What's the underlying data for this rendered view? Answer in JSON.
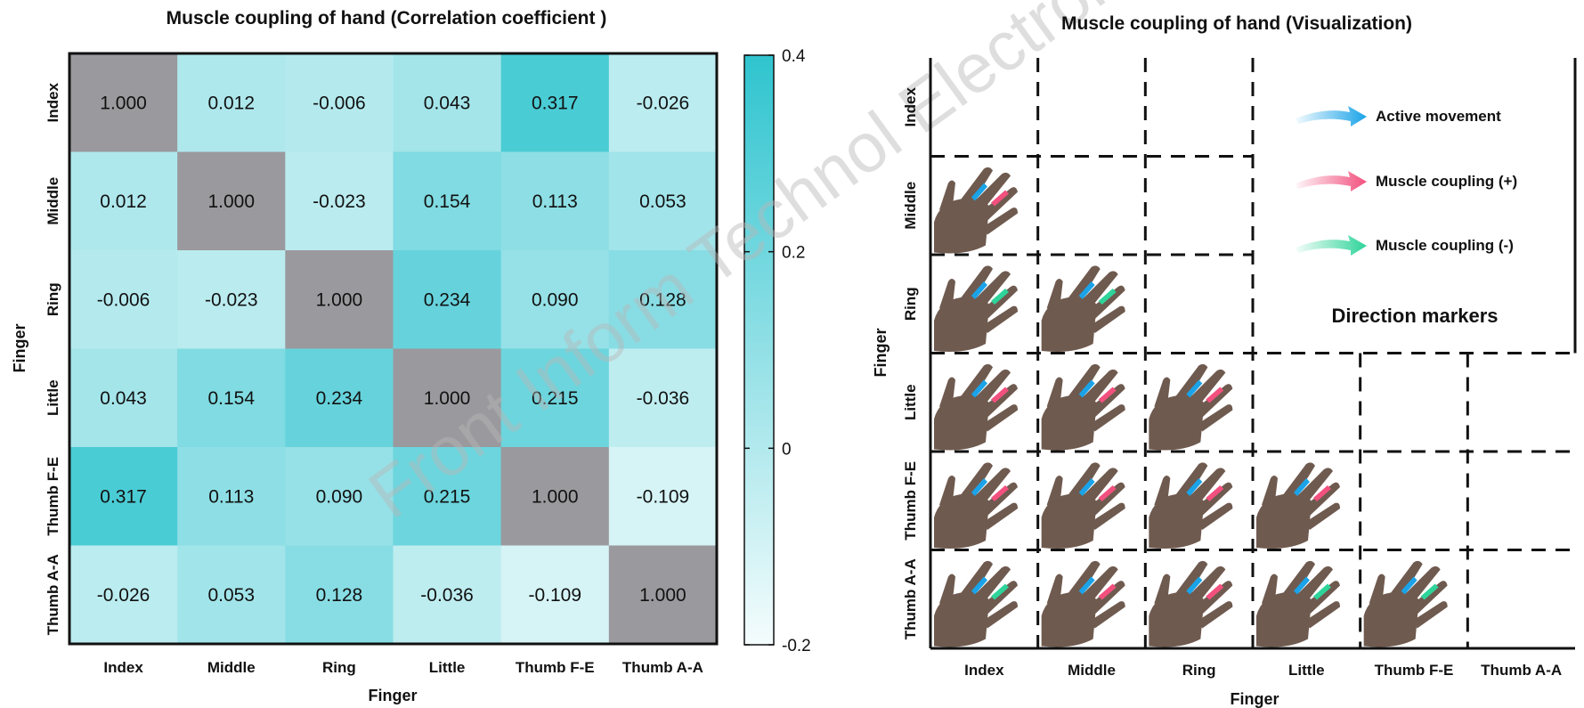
{
  "watermark": "Front Inform Technol Electron Eng",
  "chart_data": [
    {
      "type": "heatmap",
      "title": "Muscle coupling of hand (Correlation coefficient  )",
      "xlabel": "Finger",
      "ylabel": "Finger",
      "x_categories": [
        "Index",
        "Middle",
        "Ring",
        "Little",
        "Thumb F-E",
        "Thumb A-A"
      ],
      "y_categories": [
        "Index",
        "Middle",
        "Ring",
        "Little",
        "Thumb F-E",
        "Thumb A-A"
      ],
      "values": [
        [
          1.0,
          0.012,
          -0.006,
          0.043,
          0.317,
          -0.026
        ],
        [
          0.012,
          1.0,
          -0.023,
          0.154,
          0.113,
          0.053
        ],
        [
          -0.006,
          -0.023,
          1.0,
          0.234,
          0.09,
          0.128
        ],
        [
          0.043,
          0.154,
          0.234,
          1.0,
          0.215,
          -0.036
        ],
        [
          0.317,
          0.113,
          0.09,
          0.215,
          1.0,
          -0.109
        ],
        [
          -0.026,
          0.053,
          0.128,
          -0.036,
          -0.109,
          1.0
        ]
      ],
      "value_labels": [
        [
          "1.000",
          "0.012",
          "-0.006",
          "0.043",
          "0.317",
          "-0.026"
        ],
        [
          "0.012",
          "1.000",
          "-0.023",
          "0.154",
          "0.113",
          "0.053"
        ],
        [
          "-0.006",
          "-0.023",
          "1.000",
          "0.234",
          "0.090",
          "0.128"
        ],
        [
          "0.043",
          "0.154",
          "0.234",
          "1.000",
          "0.215",
          "-0.036"
        ],
        [
          "0.317",
          "0.113",
          "0.090",
          "0.215",
          "1.000",
          "-0.109"
        ],
        [
          "-0.026",
          "0.053",
          "0.128",
          "-0.036",
          "-0.109",
          "1.000"
        ]
      ],
      "colorbar": {
        "min": -0.2,
        "max": 0.4,
        "ticks": [
          "0.4",
          "0.2",
          "0",
          "-0.2"
        ],
        "tick_values": [
          0.4,
          0.2,
          0,
          -0.2
        ]
      },
      "colors": {
        "low": "#f4fcfd",
        "high": "#2fc4cf",
        "diagonal": "#9a999d"
      }
    },
    {
      "type": "table",
      "title": "Muscle coupling of hand (Visualization)",
      "xlabel": "Finger",
      "ylabel": "Finger",
      "x_categories": [
        "Index",
        "Middle",
        "Ring",
        "Little",
        "Thumb F-E",
        "Thumb A-A"
      ],
      "y_categories": [
        "Index",
        "Middle",
        "Ring",
        "Little",
        "Thumb F-E",
        "Thumb A-A"
      ],
      "legend": [
        {
          "label": "Active movement",
          "color": "#1aa3e8"
        },
        {
          "label": "Muscle coupling (+)",
          "color": "#f2507e"
        },
        {
          "label": "Muscle coupling (-)",
          "color": "#2ed49a"
        }
      ],
      "legend_caption": "Direction markers",
      "legend_position": "top-right",
      "hand_images": [
        {
          "row": 1,
          "col": 0,
          "coupling": [
            "+"
          ]
        },
        {
          "row": 2,
          "col": 0,
          "coupling": [
            "-"
          ]
        },
        {
          "row": 2,
          "col": 1,
          "coupling": [
            "-"
          ]
        },
        {
          "row": 3,
          "col": 0,
          "coupling": [
            "+"
          ]
        },
        {
          "row": 3,
          "col": 1,
          "coupling": [
            "+"
          ]
        },
        {
          "row": 3,
          "col": 2,
          "coupling": [
            "+"
          ]
        },
        {
          "row": 4,
          "col": 0,
          "coupling": [
            "+"
          ]
        },
        {
          "row": 4,
          "col": 1,
          "coupling": [
            "+"
          ]
        },
        {
          "row": 4,
          "col": 2,
          "coupling": [
            "+"
          ]
        },
        {
          "row": 4,
          "col": 3,
          "coupling": [
            "+"
          ]
        },
        {
          "row": 5,
          "col": 0,
          "coupling": [
            "-"
          ]
        },
        {
          "row": 5,
          "col": 1,
          "coupling": [
            "+"
          ]
        },
        {
          "row": 5,
          "col": 2,
          "coupling": [
            "+"
          ]
        },
        {
          "row": 5,
          "col": 3,
          "coupling": [
            "-"
          ]
        },
        {
          "row": 5,
          "col": 4,
          "coupling": [
            "-"
          ]
        }
      ],
      "colors": {
        "skin": "#6f5a4f",
        "active": "#1aa3e8",
        "positive": "#f2507e",
        "negative": "#2ed49a"
      }
    }
  ]
}
